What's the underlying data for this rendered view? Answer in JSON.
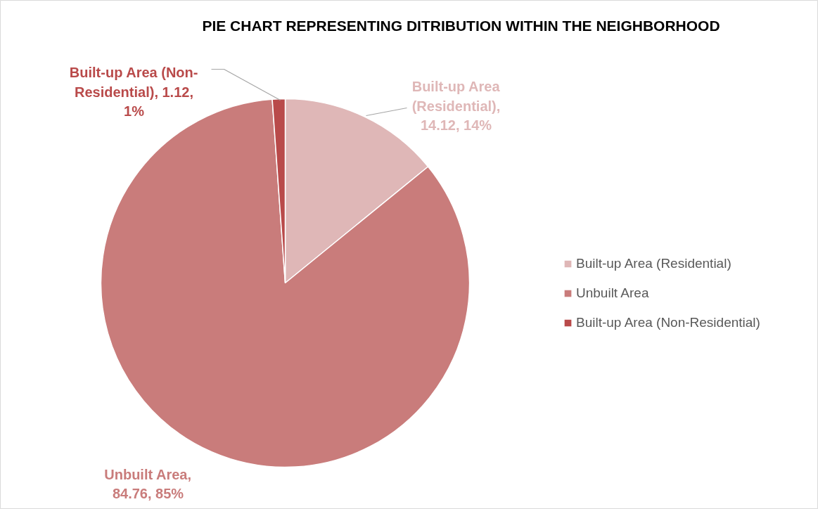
{
  "chart_data": {
    "type": "pie",
    "title": "PIE CHART REPRESENTING DITRIBUTION WITHIN THE NEIGHBORHOOD",
    "categories": [
      "Built-up Area (Residential)",
      "Unbuilt Area",
      "Built-up Area (Non-Residential)"
    ],
    "values": [
      14.12,
      84.76,
      1.12
    ],
    "colors": [
      "#dfb7b7",
      "#c97c7b",
      "#b94a4a"
    ],
    "value_labels": [
      "Built-up Area (Residential), 14.12, 14%",
      "Unbuilt Area, 84.76, 85%",
      "Built-up Area (Non-Residential), 1.12, 1%"
    ],
    "legend": "right"
  }
}
